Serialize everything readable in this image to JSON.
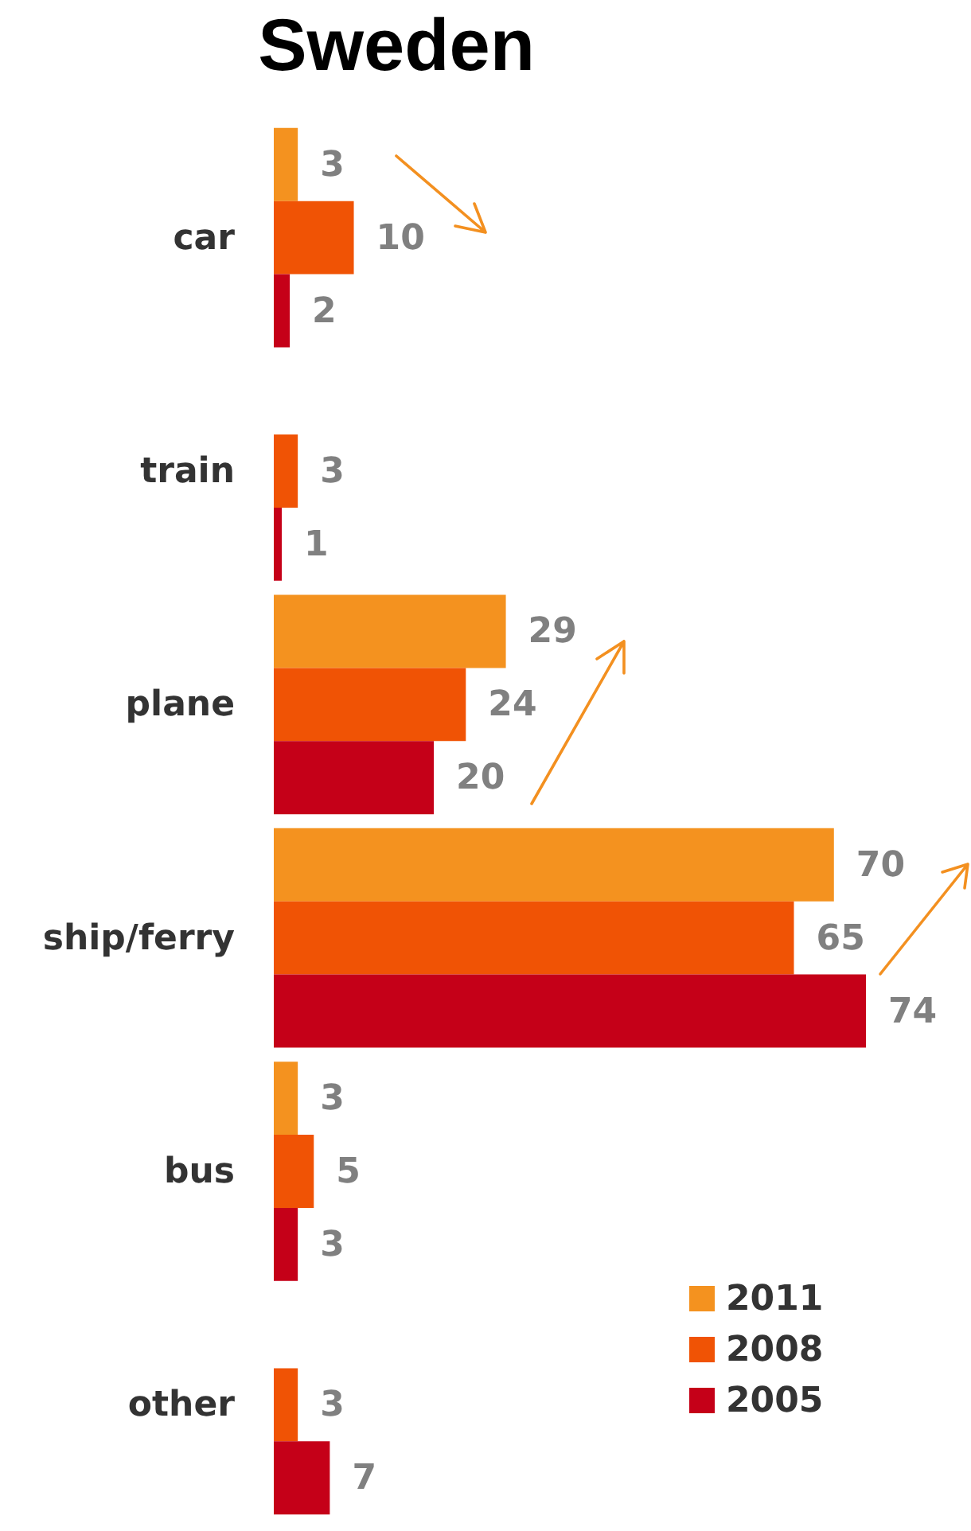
{
  "chart_data": {
    "type": "bar",
    "orientation": "horizontal",
    "title": "Sweden",
    "categories": [
      "car",
      "train",
      "plane",
      "ship/ferry",
      "bus",
      "other"
    ],
    "series": [
      {
        "name": "2011",
        "color": "#f4921f",
        "values": [
          3,
          null,
          29,
          70,
          3,
          null
        ]
      },
      {
        "name": "2008",
        "color": "#f05305",
        "values": [
          10,
          3,
          24,
          65,
          5,
          3
        ]
      },
      {
        "name": "2005",
        "color": "#c50018",
        "values": [
          2,
          1,
          20,
          74,
          3,
          7
        ]
      }
    ],
    "data_labels": true,
    "legend": "bottom right"
  }
}
